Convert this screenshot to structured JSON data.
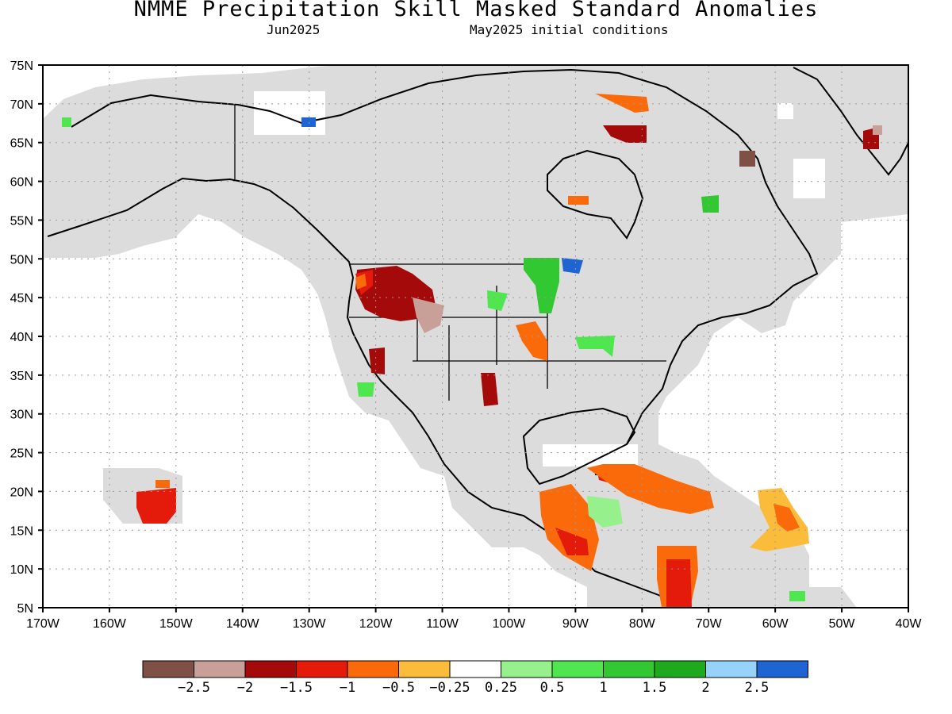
{
  "title": "NMME Precipitation Skill Masked Standard Anomalies",
  "subtitle_left": "Jun2025",
  "subtitle_right": "May2025 initial conditions",
  "lat_labels": [
    "75N",
    "70N",
    "65N",
    "60N",
    "55N",
    "50N",
    "45N",
    "40N",
    "35N",
    "30N",
    "25N",
    "20N",
    "15N",
    "10N",
    "5N"
  ],
  "lon_labels": [
    "170W",
    "160W",
    "150W",
    "140W",
    "130W",
    "120W",
    "110W",
    "100W",
    "90W",
    "80W",
    "70W",
    "60W",
    "50W",
    "40W"
  ],
  "colorbar": {
    "colors": [
      "#7f5046",
      "#c8a097",
      "#a40a0a",
      "#e41a0a",
      "#fa6a0a",
      "#fbbc3c",
      "#ffffff",
      "#96f08c",
      "#50e650",
      "#32c832",
      "#1eaa1e",
      "#96d2fa",
      "#1e64d2"
    ],
    "labels": [
      "−2.5",
      "−2",
      "−1.5",
      "−1",
      "−0.5",
      "−0.25",
      "0.25",
      "0.5",
      "1",
      "1.5",
      "2",
      "2.5"
    ]
  },
  "colors": {
    "land_mask": "#dcdcdc",
    "border": "#000000",
    "grid": "#999999"
  }
}
